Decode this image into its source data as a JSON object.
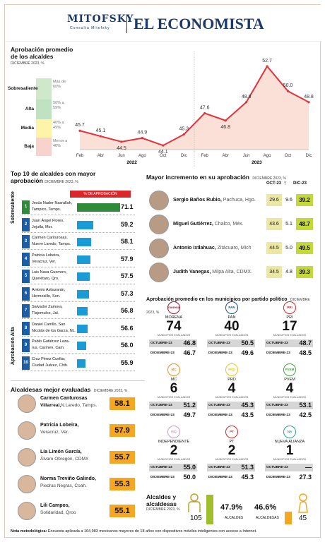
{
  "header": {
    "brand_left": "MITOFSKY",
    "brand_sub": "Consulta Mitofsky",
    "brand_right": "EL ECONOMISTA"
  },
  "trend": {
    "title1": "Aprobación promedio",
    "title2": "de los alcaldes",
    "subtitle": "DICIEMBRE 2023, %",
    "bands": [
      {
        "label": "Sobresaliente",
        "desc": "Más de 60%",
        "color": "#cfe8c9"
      },
      {
        "label": "Alta",
        "desc": "50% a 59%",
        "color": "#bfe3c0"
      },
      {
        "label": "Media",
        "desc": "40% a 49%",
        "color": "#fff3a8"
      },
      {
        "label": "Baja",
        "desc": "Menor a 40%",
        "color": "#f6d4cd"
      }
    ],
    "year_labels": [
      "2022",
      "2023"
    ]
  },
  "chart_data": {
    "type": "line",
    "categories": [
      "Feb",
      "Abr",
      "Jun",
      "Ago",
      "Oct",
      "Dic",
      "Feb",
      "Abr",
      "Jun",
      "Ago",
      "Oct",
      "Dic"
    ],
    "values": [
      45.7,
      45.1,
      44.5,
      44.9,
      44.1,
      45.3,
      47.6,
      46.8,
      48.8,
      52.7,
      50.0,
      48.8
    ],
    "labels": [
      "45.7",
      "45.1",
      "44.5",
      "44.9",
      "44.1",
      "45.3",
      "47.6",
      "46.8",
      "48.8",
      "52.7",
      "50.0",
      "48.8"
    ],
    "ylim": [
      40,
      55
    ],
    "color": "#e4313b"
  },
  "top10": {
    "title1": "Top 10 de alcaldes con mayor",
    "title2": "aprobación",
    "subtitle": "DICIEMBRE 2023, %",
    "col_header": "% DE APROBACIÓN",
    "vlabel_top": "Sobresaliente",
    "vlabel_bottom": "Aprobación Alta",
    "rows": [
      {
        "rank": "1",
        "name": "Jesús Nader Nasrallah,",
        "place": "Tampico, Tamps.",
        "value": 71.1,
        "label": "71.1"
      },
      {
        "rank": "2",
        "name": "Juan Ángel Flores,",
        "place": "Jojutla, Mor.",
        "value": 59.2,
        "label": "59.2"
      },
      {
        "rank": "3",
        "name": "Carmen Canturosas,",
        "place": "Nuevo Laredo, Tamps.",
        "value": 58.1,
        "label": "58.1"
      },
      {
        "rank": "4",
        "name": "Patricia Lobeira,",
        "place": "Veracruz, Ver.",
        "value": 57.9,
        "label": "57.9"
      },
      {
        "rank": "5",
        "name": "Luis Nava Guerrero,",
        "place": "Querétaro, Qro.",
        "value": 57.5,
        "label": "57.5"
      },
      {
        "rank": "6",
        "name": "Antonio Astiazarán,",
        "place": "Hermosillo, Son.",
        "value": 57.3,
        "label": "57.3"
      },
      {
        "rank": "7",
        "name": "Salvador Zamora,",
        "place": "Tlajomulco, Jal.",
        "value": 56.8,
        "label": "56.8"
      },
      {
        "rank": "8",
        "name": "Daniel Carrillo, San",
        "place": "Nicolás de los Garza, NL.",
        "value": 56.6,
        "label": "56.6"
      },
      {
        "rank": "9",
        "name": "Pablo Gutiérrez Laza-",
        "place": "rus, Carmen, Cam.",
        "value": 56.0,
        "label": "56.0"
      },
      {
        "rank": "10",
        "name": "Cruz Pérez Cuellar,",
        "place": "Ciudad Juárez, Chih.",
        "value": 55.9,
        "label": "55.9"
      }
    ]
  },
  "women": {
    "title": "Alcaldesas mejor evaluadas",
    "subtitle": "DICIEMBRE 2023, %",
    "rows": [
      {
        "name": "Carmen Canturosas",
        "name2": "Villarreal,",
        "place": "N.Laredo, Tamps.",
        "value": "58.1"
      },
      {
        "name": "Patricia Lobeira,",
        "name2": "",
        "place": "Veracruz, Ver.",
        "value": "57.9"
      },
      {
        "name": "Lía Limón García,",
        "name2": "",
        "place": "Álvaro Obregón, CDMX",
        "value": "55.7"
      },
      {
        "name": "Norma Treviño Galindo,",
        "name2": "",
        "place": "Piedras Negras, Coah.",
        "value": "55.3"
      },
      {
        "name": "Lili Campos,",
        "name2": "",
        "place": "Solidaridad, Qroo",
        "value": "55.1"
      }
    ]
  },
  "increase": {
    "title": "Mayor incremento en su aprobación",
    "subtitle": "DICIEMBRE 2023, %",
    "col_oct": "OCT-23",
    "col_dic": "DIC-23",
    "rows": [
      {
        "name": "Sergio Baños Rubio,",
        "place": "Pachuca, Hgo.",
        "oct": "29.6",
        "diff": "9.6",
        "dic": "39.2"
      },
      {
        "name": "Miguel Gutiérrez,",
        "place": "Chalco, Méx.",
        "oct": "43.6",
        "diff": "5.1",
        "dic": "48.7"
      },
      {
        "name": "Antonio Ixtlahuac,",
        "place": "Zitácuaro, Mich",
        "oct": "44.5",
        "diff": "5.0",
        "dic": "49.5"
      },
      {
        "name": "Judith Vanegas,",
        "place": "Milpa Alta, CDMX.",
        "oct": "34.5",
        "diff": "4.8",
        "dic": "39.3"
      }
    ]
  },
  "parties": {
    "title": "Aprobación promedio en los municipios por partido político",
    "subtitle": "DICIEMBRE 2023, %",
    "mun_label": "MUNICIPIOS EVALUADOS",
    "oct_label": "OCTUBRE-23",
    "dic_label": "DICIEMBRE-23",
    "items": [
      {
        "name": "MORENA",
        "logo": "morena",
        "count": "74",
        "oct": "46.8",
        "dic": "46.7",
        "color": "#9b1c2e"
      },
      {
        "name": "PAN",
        "logo": "PAN",
        "count": "40",
        "oct": "50.5",
        "dic": "49.6",
        "color": "#1d4fa0"
      },
      {
        "name": "PRI",
        "logo": "PRI",
        "count": "17",
        "oct": "48.7",
        "dic": "48.5",
        "color": "#d8262c"
      },
      {
        "name": "MC",
        "logo": "MC",
        "count": "6",
        "oct": "51.2",
        "dic": "49.7",
        "color": "#f28b21"
      },
      {
        "name": "PRD",
        "logo": "PRD",
        "count": "4",
        "oct": "45.3",
        "dic": "43.5",
        "color": "#f4c21a"
      },
      {
        "name": "PVEM",
        "logo": "PVEM",
        "count": "4",
        "oct": "53.1",
        "dic": "42.5",
        "color": "#49a342"
      },
      {
        "name": "INDEPENDIENTE",
        "logo": "IND",
        "count": "2",
        "oct": "55.0",
        "dic": "50.0",
        "color": "#c79dc7"
      },
      {
        "name": "PT",
        "logo": "PT",
        "count": "2",
        "oct": "51.3",
        "dic": "45.3",
        "color": "#d8262c"
      },
      {
        "name": "NUEVA ALIANZA",
        "logo": "NA",
        "count": "1",
        "oct": "—",
        "dic": "27.3",
        "color": "#2aa38f"
      }
    ]
  },
  "gender": {
    "title1": "Alcaldes y",
    "title2": "alcaldesas",
    "subtitle": "DICIEMBRE 2023, %",
    "men_count": "105",
    "men_pct": "47.9%",
    "men_label": "ALCALDES",
    "women_pct": "46.6%",
    "women_label": "ALCALDESAS",
    "women_count": "45"
  },
  "note": {
    "label": "Nota metodológica:",
    "text": "Encuesta aplicada a 164,983 mexicanos mayores de 18 años con dispositivos móviles inteligentes con acceso a Internet."
  }
}
